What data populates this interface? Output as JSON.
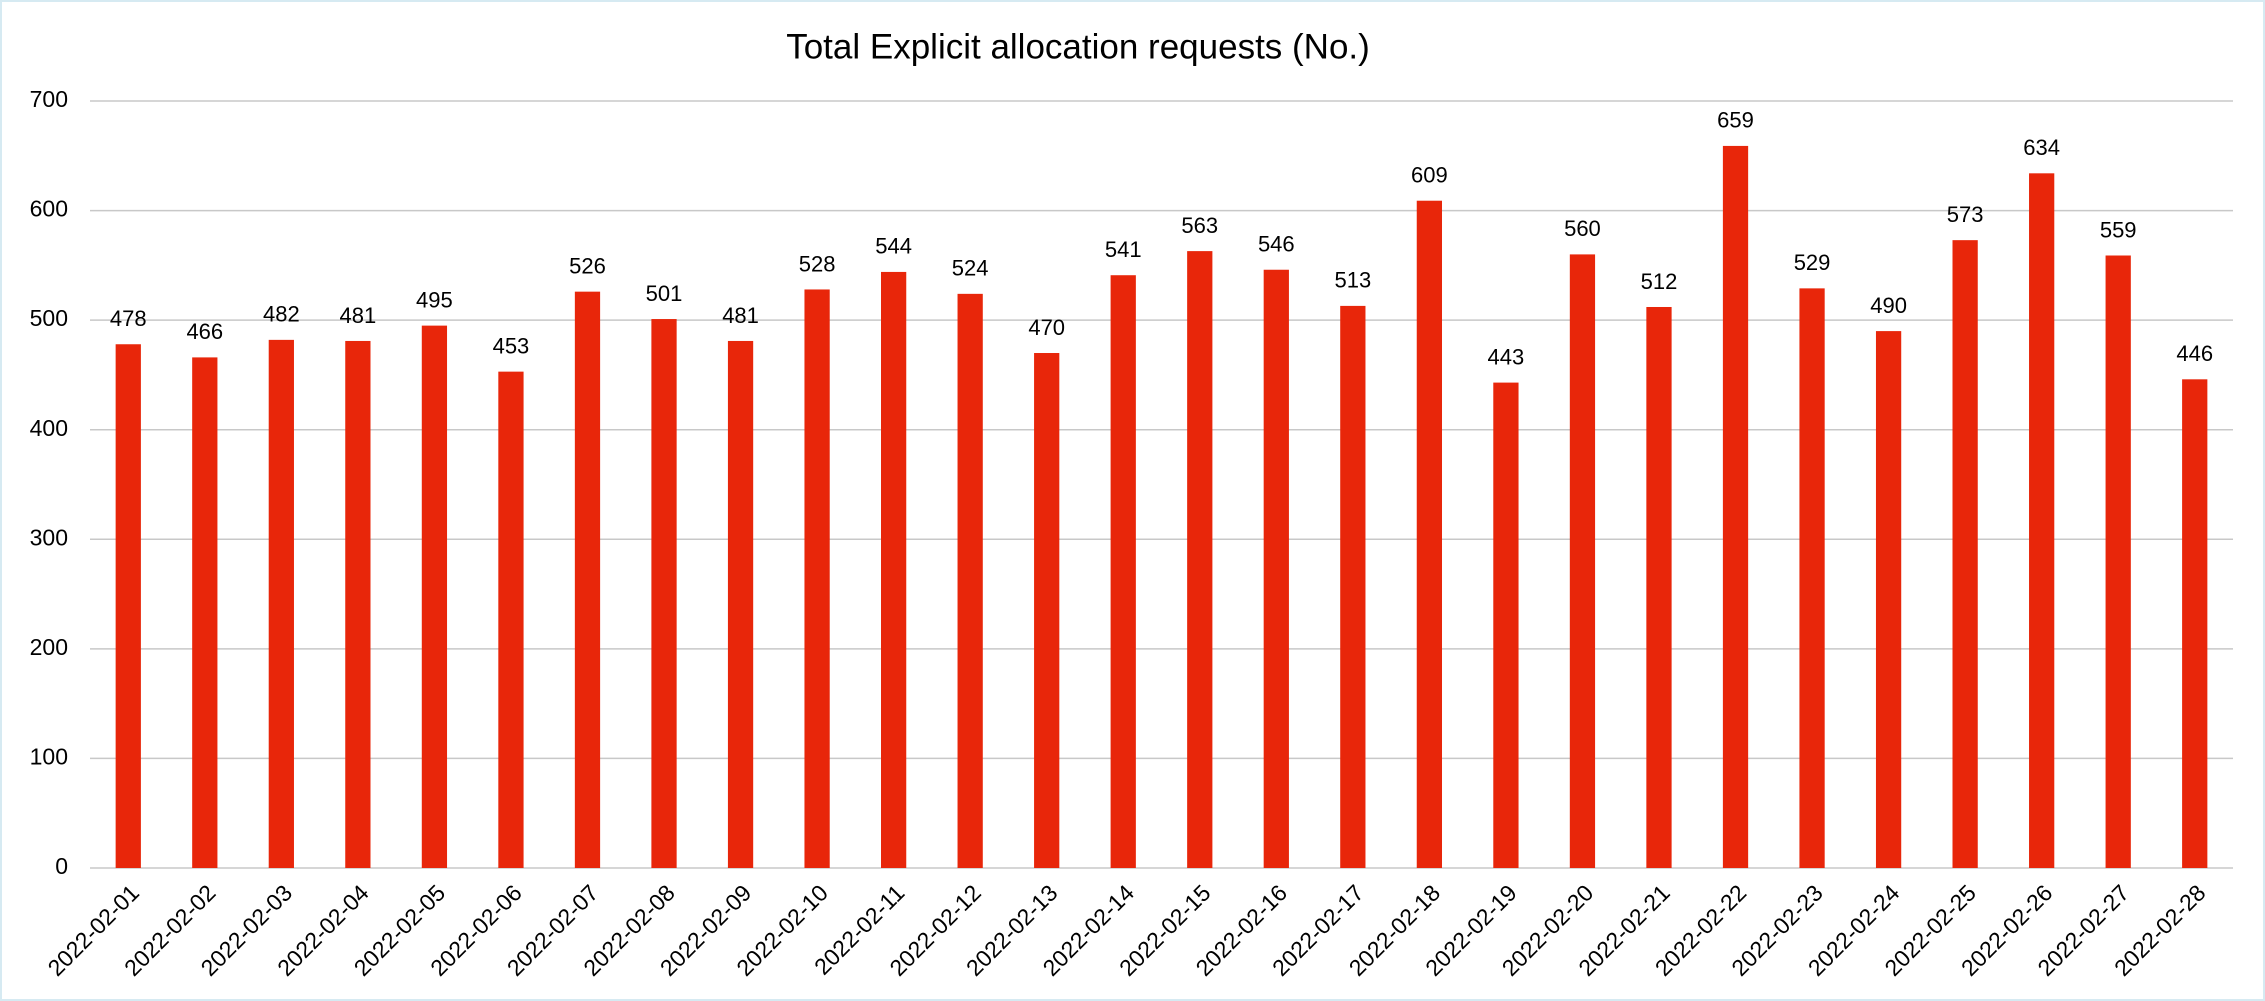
{
  "chart_data": {
    "type": "bar",
    "title": "Total Explicit allocation requests (No.)",
    "categories": [
      "2022-02-01",
      "2022-02-02",
      "2022-02-03",
      "2022-02-04",
      "2022-02-05",
      "2022-02-06",
      "2022-02-07",
      "2022-02-08",
      "2022-02-09",
      "2022-02-10",
      "2022-02-11",
      "2022-02-12",
      "2022-02-13",
      "2022-02-14",
      "2022-02-15",
      "2022-02-16",
      "2022-02-17",
      "2022-02-18",
      "2022-02-19",
      "2022-02-20",
      "2022-02-21",
      "2022-02-22",
      "2022-02-23",
      "2022-02-24",
      "2022-02-25",
      "2022-02-26",
      "2022-02-27",
      "2022-02-28"
    ],
    "values": [
      478,
      466,
      482,
      481,
      495,
      453,
      526,
      501,
      481,
      528,
      544,
      524,
      470,
      541,
      563,
      546,
      513,
      609,
      443,
      560,
      512,
      659,
      529,
      490,
      573,
      634,
      559,
      446
    ],
    "color": "#e8260a",
    "ylim": [
      0,
      700
    ],
    "yticks": [
      0,
      100,
      200,
      300,
      400,
      500,
      600,
      700
    ],
    "grid": true
  }
}
